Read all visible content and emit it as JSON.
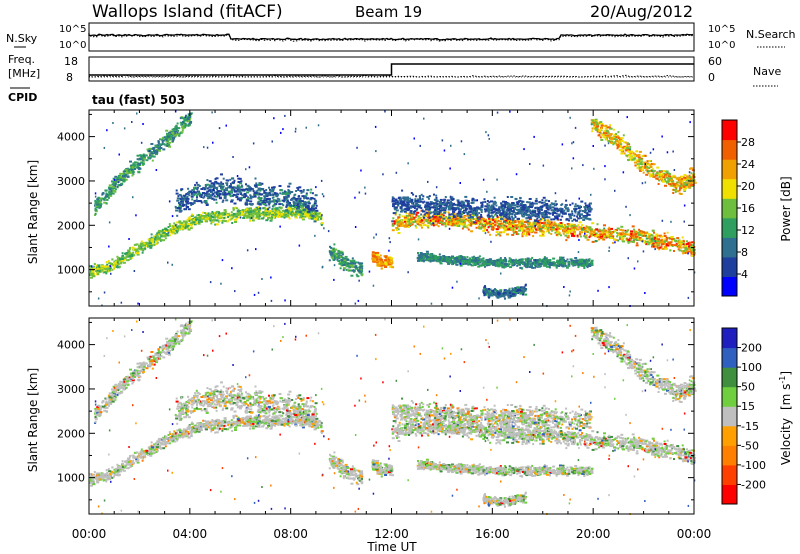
{
  "header": {
    "title": "Wallops Island (fitACF)",
    "beam": "Beam 19",
    "date": "20/Aug/2012"
  },
  "noise_panel": {
    "left_label": "N.Sky",
    "right_label": "N.Search",
    "left_ticks": [
      "10^5",
      "10^0"
    ],
    "right_ticks": [
      "10^5",
      "10^0"
    ]
  },
  "freq_panel": {
    "left_label_1": "Freq.",
    "left_label_2": "[MHz]",
    "cpid_label": "CPID",
    "right_label": "Nave",
    "left_ticks": [
      "18",
      "8"
    ],
    "right_ticks": [
      "60",
      "0"
    ]
  },
  "mode_text": "tau (fast) 503",
  "colors": {
    "power": [
      "#0000ff",
      "#1f3f9f",
      "#2f6f8f",
      "#2f9f5f",
      "#6fbf3f",
      "#f0e000",
      "#f0a000",
      "#f06000",
      "#ff0000"
    ],
    "velocity": [
      "#1f1fbf",
      "#2f5fbf",
      "#3f8f3f",
      "#6fcf3f",
      "#bfbfbf",
      "#ffa000",
      "#ff7f00",
      "#ff3f00",
      "#ff0000"
    ],
    "frame": "#000000"
  },
  "chart_data": [
    {
      "type": "heatmap",
      "name": "Power",
      "ylabel": "Slant Range [km]",
      "yticks": [
        "1000",
        "2000",
        "3000",
        "4000"
      ],
      "ylim": [
        180,
        4600
      ],
      "xlim": [
        0,
        24
      ],
      "colorbar_label": "Power [dB]",
      "colorbar_ticks": [
        "4",
        "8",
        "12",
        "16",
        "20",
        "24",
        "28"
      ],
      "colorbar_range": [
        0,
        32
      ],
      "scatter_bands": [
        {
          "points": [
            [
              0.0,
              950
            ],
            [
              0.8,
              1050
            ],
            [
              1.7,
              1400
            ],
            [
              2.6,
              1700
            ],
            [
              3.4,
              1950
            ],
            [
              4.3,
              2150
            ],
            [
              5.2,
              2200
            ],
            [
              6.0,
              2250
            ],
            [
              6.9,
              2250
            ],
            [
              7.8,
              2300
            ],
            [
              8.6,
              2300
            ],
            [
              9.2,
              2150
            ]
          ],
          "width": 200,
          "power": [
            12,
            20
          ]
        },
        {
          "points": [
            [
              0.2,
              2400
            ],
            [
              1.0,
              2900
            ],
            [
              1.7,
              3300
            ],
            [
              2.6,
              3700
            ],
            [
              3.4,
              4100
            ],
            [
              4.0,
              4450
            ]
          ],
          "width": 250,
          "power": [
            8,
            16
          ]
        },
        {
          "points": [
            [
              3.4,
              2500
            ],
            [
              4.3,
              2700
            ],
            [
              5.2,
              2800
            ],
            [
              6.0,
              2750
            ],
            [
              6.9,
              2650
            ],
            [
              7.8,
              2600
            ],
            [
              8.6,
              2550
            ],
            [
              9.0,
              2400
            ]
          ],
          "width": 400,
          "power": [
            4,
            12
          ]
        },
        {
          "points": [
            [
              9.5,
              1400
            ],
            [
              10.3,
              1100
            ],
            [
              10.8,
              1000
            ]
          ],
          "width": 250,
          "power": [
            8,
            16
          ]
        },
        {
          "points": [
            [
              11.2,
              1300
            ],
            [
              11.6,
              1150
            ],
            [
              12.0,
              1200
            ]
          ],
          "width": 200,
          "power": [
            20,
            28
          ]
        },
        {
          "points": [
            [
              12.0,
              2050
            ],
            [
              13.0,
              2100
            ],
            [
              13.8,
              2150
            ],
            [
              14.7,
              2100
            ],
            [
              15.6,
              2050
            ],
            [
              16.4,
              2000
            ],
            [
              17.3,
              1950
            ],
            [
              18.2,
              1950
            ],
            [
              19.0,
              1900
            ],
            [
              19.9,
              1850
            ],
            [
              20.8,
              1800
            ],
            [
              21.6,
              1750
            ],
            [
              22.5,
              1650
            ],
            [
              23.4,
              1550
            ],
            [
              24.0,
              1450
            ]
          ],
          "width": 260,
          "power": [
            14,
            30
          ]
        },
        {
          "points": [
            [
              12.0,
              2500
            ],
            [
              13.0,
              2450
            ],
            [
              14.7,
              2400
            ],
            [
              16.4,
              2350
            ],
            [
              18.2,
              2350
            ],
            [
              19.9,
              2300
            ]
          ],
          "width": 350,
          "power": [
            4,
            10
          ]
        },
        {
          "points": [
            [
              13.0,
              1300
            ],
            [
              14.7,
              1200
            ],
            [
              16.4,
              1150
            ],
            [
              18.2,
              1150
            ],
            [
              19.9,
              1150
            ]
          ],
          "width": 150,
          "power": [
            8,
            14
          ]
        },
        {
          "points": [
            [
              19.9,
              4300
            ],
            [
              20.8,
              3950
            ],
            [
              21.6,
              3550
            ],
            [
              22.5,
              3150
            ],
            [
              23.4,
              2900
            ],
            [
              24.0,
              3100
            ]
          ],
          "width": 300,
          "power": [
            14,
            28
          ]
        },
        {
          "points": [
            [
              15.6,
              500
            ],
            [
              16.4,
              450
            ],
            [
              17.3,
              550
            ]
          ],
          "width": 150,
          "power": [
            4,
            12
          ]
        }
      ]
    },
    {
      "type": "heatmap",
      "name": "Velocity",
      "ylabel": "Slant Range [km]",
      "yticks": [
        "1000",
        "2000",
        "3000",
        "4000"
      ],
      "ylim": [
        180,
        4600
      ],
      "xlim": [
        0,
        24
      ],
      "xlabel": "Time UT",
      "xticks": [
        "00:00",
        "04:00",
        "08:00",
        "12:00",
        "16:00",
        "20:00",
        "00:00"
      ],
      "colorbar_label_main": "Velocity",
      "colorbar_label_unit": "[m s",
      "colorbar_label_exp": "-1",
      "colorbar_label_close": "]",
      "colorbar_ticks": [
        "200",
        "100",
        "50",
        "15",
        "-15",
        "-50",
        "-100",
        "-200"
      ],
      "colorbar_range": [
        -250,
        250
      ]
    }
  ]
}
